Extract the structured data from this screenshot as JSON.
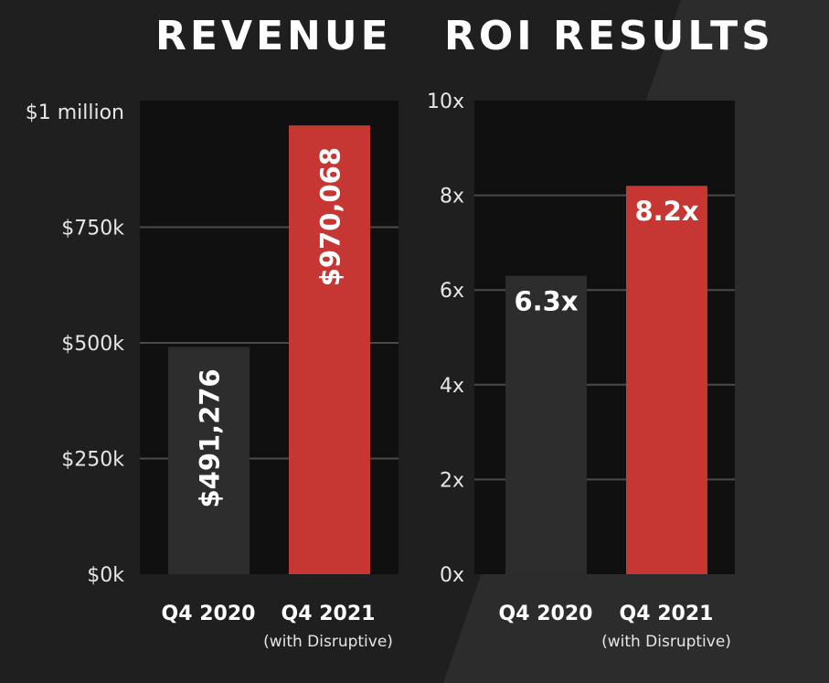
{
  "colors": {
    "background": "#1f1f1f",
    "background_diagonal": "#2c2c2c",
    "plot_area": "#101010",
    "gridline": "#4a4a4a",
    "bar_before": "#2d2d2d",
    "bar_after": "#c63633",
    "text": "#ffffff"
  },
  "chart_data": [
    {
      "type": "bar",
      "title": "REVENUE",
      "categories": [
        "Q4 2020",
        "Q4 2021"
      ],
      "category_subtitles": [
        "",
        "(with Disruptive)"
      ],
      "values": [
        491276,
        970068
      ],
      "value_labels": [
        "$491,276",
        "$970,068"
      ],
      "value_label_orientation": "vertical",
      "ylim": [
        0,
        1000000
      ],
      "yticks": [
        0,
        250000,
        500000,
        750000,
        1000000
      ],
      "ytick_labels": [
        "$0k",
        "$250k",
        "$500k",
        "$750k",
        "$1 million"
      ],
      "grid": true,
      "xlabel": "",
      "ylabel": ""
    },
    {
      "type": "bar",
      "title": "ROI RESULTS",
      "categories": [
        "Q4 2020",
        "Q4 2021"
      ],
      "category_subtitles": [
        "",
        "(with Disruptive)"
      ],
      "values": [
        6.3,
        8.2
      ],
      "value_labels": [
        "6.3x",
        "8.2x"
      ],
      "value_label_orientation": "horizontal",
      "ylim": [
        0,
        10
      ],
      "yticks": [
        0,
        2,
        4,
        6,
        8,
        10
      ],
      "ytick_labels": [
        "0x",
        "2x",
        "4x",
        "6x",
        "8x",
        "10x"
      ],
      "grid": true,
      "xlabel": "",
      "ylabel": ""
    }
  ]
}
